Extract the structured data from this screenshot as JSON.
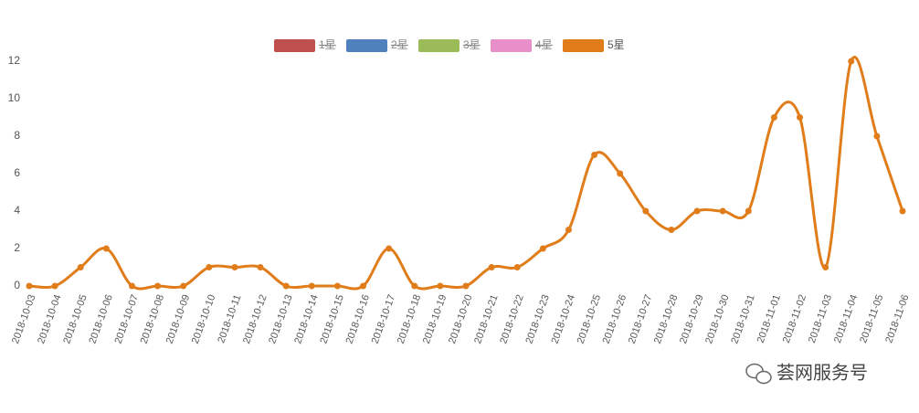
{
  "chart_data": {
    "type": "line",
    "x": [
      "2018-10-03",
      "2018-10-04",
      "2018-10-05",
      "2018-10-06",
      "2018-10-07",
      "2018-10-08",
      "2018-10-09",
      "2018-10-10",
      "2018-10-11",
      "2018-10-12",
      "2018-10-13",
      "2018-10-14",
      "2018-10-15",
      "2018-10-16",
      "2018-10-17",
      "2018-10-18",
      "2018-10-19",
      "2018-10-20",
      "2018-10-21",
      "2018-10-22",
      "2018-10-23",
      "2018-10-24",
      "2018-10-25",
      "2018-10-26",
      "2018-10-27",
      "2018-10-28",
      "2018-10-29",
      "2018-10-30",
      "2018-10-31",
      "2018-11-01",
      "2018-11-02",
      "2018-11-03",
      "2018-11-04",
      "2018-11-05",
      "2018-11-06"
    ],
    "series": [
      {
        "name": "1星",
        "color": "#c0504d",
        "hidden": true
      },
      {
        "name": "2星",
        "color": "#4f81bd",
        "hidden": true
      },
      {
        "name": "3星",
        "color": "#9bbb59",
        "hidden": true
      },
      {
        "name": "4星",
        "color": "#e88fca",
        "hidden": true
      },
      {
        "name": "5星",
        "color": "#e07d1a",
        "values": [
          0,
          0,
          1,
          2,
          0,
          0,
          0,
          1,
          1,
          1,
          0,
          0,
          0,
          0,
          2,
          0,
          0,
          0,
          1,
          1,
          2,
          3,
          7,
          6,
          4,
          3,
          4,
          4,
          4,
          9,
          9,
          1,
          12,
          8,
          4
        ]
      }
    ],
    "ylim": [
      0,
      12
    ],
    "yticks": [
      0,
      2,
      4,
      6,
      8,
      10,
      12
    ],
    "smooth": true,
    "legend": "top",
    "watermark": "荟网服务号"
  }
}
